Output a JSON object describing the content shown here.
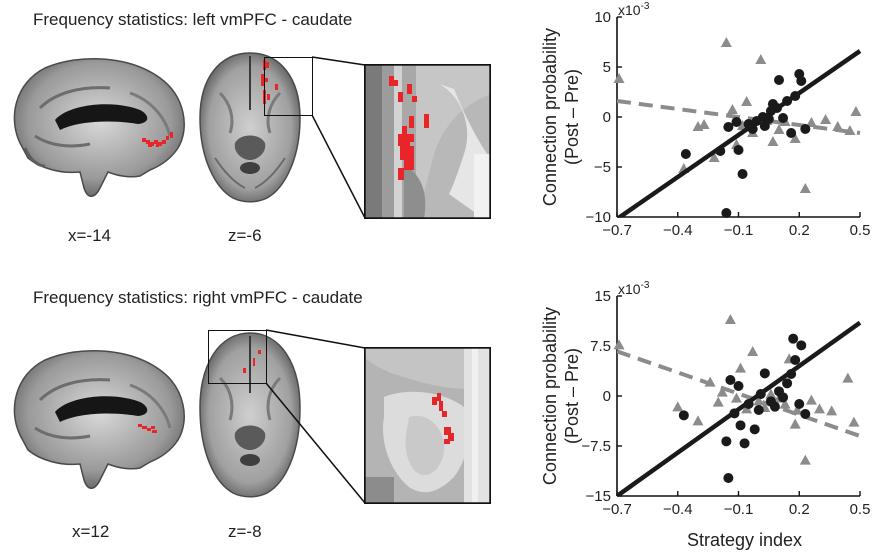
{
  "panels": [
    {
      "title": "Frequency statistics: left vmPFC - caudate",
      "sagittal_label": "x=-14",
      "axial_label": "z=-6"
    },
    {
      "title": "Frequency statistics: right vmPFC - caudate",
      "sagittal_label": "x=12",
      "axial_label": "z=-8"
    }
  ],
  "colors": {
    "cluster": "#e8262a",
    "group_a": "#1a1a1a",
    "group_b": "#8c8c8c"
  },
  "chart_data": [
    {
      "type": "scatter",
      "ylabel": "Connection probability",
      "ylabel2": "(Post – Pre)",
      "xlabel": "",
      "scale_label": "x10",
      "scale_exp": "-3",
      "xlim": [
        -0.7,
        0.5
      ],
      "ylim": [
        -10,
        10
      ],
      "xticks": [
        "−0.7",
        "−0.4",
        "−0.1",
        "0.2",
        "0.5"
      ],
      "xtick_values": [
        -0.7,
        -0.4,
        -0.1,
        0.2,
        0.5
      ],
      "yticks": [
        "−10",
        "−5",
        "0",
        "5",
        "10"
      ],
      "ytick_values": [
        -10,
        -5,
        0,
        5,
        10
      ],
      "series": [
        {
          "marker": "circle",
          "points": [
            [
              -0.36,
              -3.7
            ],
            [
              -0.19,
              -3.4
            ],
            [
              -0.16,
              -9.6
            ],
            [
              -0.15,
              -1.0
            ],
            [
              -0.11,
              -0.5
            ],
            [
              -0.1,
              -3.3
            ],
            [
              -0.08,
              -5.7
            ],
            [
              -0.05,
              -0.7
            ],
            [
              -0.03,
              -1.2
            ],
            [
              -0.01,
              -0.4
            ],
            [
              0.02,
              0.0
            ],
            [
              0.03,
              -0.9
            ],
            [
              0.05,
              -0.2
            ],
            [
              0.06,
              0.6
            ],
            [
              0.07,
              1.3
            ],
            [
              0.09,
              0.9
            ],
            [
              0.1,
              3.7
            ],
            [
              0.12,
              -0.1
            ],
            [
              0.14,
              1.6
            ],
            [
              0.16,
              -1.6
            ],
            [
              0.18,
              2.1
            ],
            [
              0.2,
              4.3
            ],
            [
              0.21,
              3.6
            ],
            [
              0.23,
              -1.2
            ]
          ],
          "fit": [
            [
              -0.7,
              -10.2
            ],
            [
              0.5,
              6.6
            ]
          ]
        },
        {
          "marker": "triangle",
          "points": [
            [
              -0.69,
              3.8
            ],
            [
              -0.37,
              -5.2
            ],
            [
              -0.3,
              -1.0
            ],
            [
              -0.27,
              -0.8
            ],
            [
              -0.22,
              -4.1
            ],
            [
              -0.16,
              7.4
            ],
            [
              -0.13,
              0.7
            ],
            [
              -0.11,
              -2.8
            ],
            [
              -0.08,
              -0.9
            ],
            [
              -0.06,
              1.5
            ],
            [
              -0.03,
              -1.6
            ],
            [
              0.01,
              5.7
            ],
            [
              0.04,
              -0.4
            ],
            [
              0.07,
              -2.5
            ],
            [
              0.1,
              -1.3
            ],
            [
              0.13,
              -0.5
            ],
            [
              0.18,
              -2.2
            ],
            [
              0.23,
              -7.2
            ],
            [
              0.26,
              -0.6
            ],
            [
              0.33,
              -0.3
            ],
            [
              0.39,
              -1.0
            ],
            [
              0.45,
              -1.4
            ],
            [
              0.48,
              0.5
            ]
          ],
          "fit": [
            [
              -0.7,
              1.6
            ],
            [
              0.5,
              -1.6
            ]
          ]
        }
      ]
    },
    {
      "type": "scatter",
      "ylabel": "Connection probability",
      "ylabel2": "(Post – Pre)",
      "xlabel": "Strategy index",
      "scale_label": "x10",
      "scale_exp": "-3",
      "xlim": [
        -0.7,
        0.5
      ],
      "ylim": [
        -15,
        15
      ],
      "xticks": [
        "−0.7",
        "−0.4",
        "−0.1",
        "0.2",
        "0.5"
      ],
      "xtick_values": [
        -0.7,
        -0.4,
        -0.1,
        0.2,
        0.5
      ],
      "yticks": [
        "−15",
        "−7.5",
        "0",
        "7.5",
        "15"
      ],
      "ytick_values": [
        -15,
        -7.5,
        0,
        7.5,
        15
      ],
      "series": [
        {
          "marker": "circle",
          "points": [
            [
              -0.37,
              -2.9
            ],
            [
              -0.16,
              -6.8
            ],
            [
              -0.15,
              -12.3
            ],
            [
              -0.14,
              2.4
            ],
            [
              -0.12,
              -2.6
            ],
            [
              -0.1,
              1.5
            ],
            [
              -0.09,
              -4.4
            ],
            [
              -0.07,
              -7.1
            ],
            [
              -0.05,
              -1.2
            ],
            [
              -0.02,
              -5.0
            ],
            [
              0.0,
              -2.1
            ],
            [
              0.01,
              0.3
            ],
            [
              0.03,
              3.4
            ],
            [
              0.06,
              -0.8
            ],
            [
              0.08,
              -1.6
            ],
            [
              0.1,
              0.7
            ],
            [
              0.12,
              -0.2
            ],
            [
              0.14,
              1.9
            ],
            [
              0.16,
              3.3
            ],
            [
              0.17,
              8.6
            ],
            [
              0.18,
              5.4
            ],
            [
              0.2,
              -1.2
            ],
            [
              0.21,
              7.6
            ],
            [
              0.23,
              -2.7
            ]
          ],
          "fit": [
            [
              -0.7,
              -15.0
            ],
            [
              0.5,
              11.0
            ]
          ]
        },
        {
          "marker": "triangle",
          "points": [
            [
              -0.69,
              7.6
            ],
            [
              -0.4,
              -1.7
            ],
            [
              -0.3,
              -3.8
            ],
            [
              -0.24,
              2.0
            ],
            [
              -0.2,
              -1.0
            ],
            [
              -0.18,
              0.5
            ],
            [
              -0.14,
              11.4
            ],
            [
              -0.11,
              -0.4
            ],
            [
              -0.09,
              4.1
            ],
            [
              -0.06,
              -2.0
            ],
            [
              -0.03,
              6.6
            ],
            [
              0.0,
              -0.8
            ],
            [
              0.03,
              -1.8
            ],
            [
              0.06,
              0.2
            ],
            [
              0.1,
              -0.4
            ],
            [
              0.13,
              -1.3
            ],
            [
              0.15,
              5.5
            ],
            [
              0.18,
              -4.3
            ],
            [
              0.19,
              -2.2
            ],
            [
              0.23,
              -9.7
            ],
            [
              0.26,
              -0.7
            ],
            [
              0.3,
              -2.0
            ],
            [
              0.36,
              -2.3
            ],
            [
              0.44,
              2.6
            ],
            [
              0.47,
              -4.0
            ]
          ],
          "fit": [
            [
              -0.7,
              6.7
            ],
            [
              0.5,
              -6.0
            ]
          ]
        }
      ]
    }
  ]
}
